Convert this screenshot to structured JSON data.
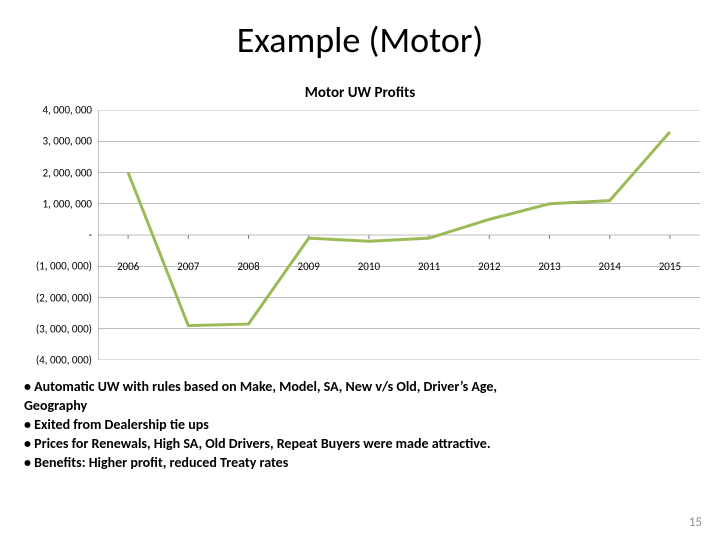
{
  "slide": {
    "title": "Example (Motor)",
    "page_number": "15"
  },
  "chart": {
    "type": "line",
    "title": "Motor UW Profits",
    "title_fontsize": 15,
    "title_fontweight": 700,
    "background_color": "#ffffff",
    "grid_color": "#7f7f7f",
    "axis_color": "#808080",
    "series_color": "#9bbb59",
    "series_line_width": 3,
    "label_fontsize": 11,
    "ymin": -4000000,
    "ymax": 4000000,
    "ytick_step": 1000000,
    "ytick_labels": [
      "4, 000, 000",
      "3, 000, 000",
      "2, 000, 000",
      "1, 000, 000",
      "-",
      "(1, 000, 000)",
      "(2, 000, 000)",
      "(3, 000, 000)",
      "(4, 000, 000)"
    ],
    "ytick_values": [
      4000000,
      3000000,
      2000000,
      1000000,
      0,
      -1000000,
      -2000000,
      -3000000,
      -4000000
    ],
    "categories": [
      "2006",
      "2007",
      "2008",
      "2009",
      "2010",
      "2011",
      "2012",
      "2013",
      "2014",
      "2015"
    ],
    "values": [
      2000000,
      -2900000,
      -2850000,
      -100000,
      -200000,
      -100000,
      500000,
      1000000,
      1100000,
      3300000
    ],
    "x_label_y_value": -1000000
  },
  "bullets": {
    "lines": [
      "• Automatic UW with rules based on Make, Model, SA, New v/s Old, Driver’s Age,",
      "Geography",
      "• Exited from Dealership tie ups",
      "• Prices for Renewals, High SA, Old Drivers, Repeat Buyers were made attractive.",
      "• Benefits: Higher profit, reduced Treaty rates"
    ],
    "fontsize": 14,
    "fontweight": 700,
    "color": "#000000"
  }
}
